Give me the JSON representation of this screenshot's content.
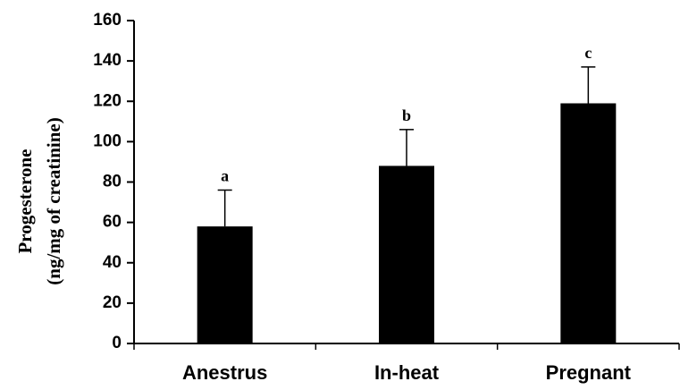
{
  "chart_data": {
    "type": "bar",
    "ylabel": [
      "Progesterone",
      "(ng/mg of creatinine)"
    ],
    "categories": [
      "Anestrus",
      "In-heat",
      "Pregnant"
    ],
    "values": [
      58,
      88,
      119
    ],
    "errors": [
      18,
      18,
      18
    ],
    "annotations": [
      "a",
      "b",
      "c"
    ],
    "color": "#000000",
    "ylim": [
      0,
      160
    ],
    "yticks": [
      0,
      20,
      40,
      60,
      80,
      100,
      120,
      140,
      160
    ]
  }
}
